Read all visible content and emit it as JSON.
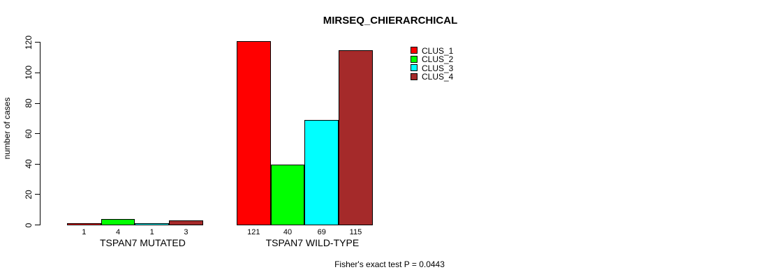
{
  "chart_data": {
    "type": "bar",
    "title": "MIRSEQ_CHIERARCHICAL",
    "ylabel": "number of cases",
    "xlabel": "",
    "categories": [
      "TSPAN7 MUTATED",
      "TSPAN7 WILD-TYPE"
    ],
    "series": [
      {
        "name": "CLUS_1",
        "color": "#FF0000",
        "values": [
          1,
          121
        ]
      },
      {
        "name": "CLUS_2",
        "color": "#00FF00",
        "values": [
          4,
          40
        ]
      },
      {
        "name": "CLUS_3",
        "color": "#00FFFF",
        "values": [
          1,
          69
        ]
      },
      {
        "name": "CLUS_4",
        "color": "#A52A2A",
        "values": [
          3,
          115
        ]
      }
    ],
    "bar_labels": [
      [
        "1",
        "4",
        "1",
        "3"
      ],
      [
        "121",
        "40",
        "69",
        "115"
      ]
    ],
    "yticks": [
      0,
      20,
      40,
      60,
      80,
      100,
      120
    ],
    "ylim": [
      0,
      120
    ],
    "grid": false,
    "legend_position": "top-right",
    "annotation": "Fisher's exact test P = 0.0443"
  },
  "colors": {
    "background": "#FFFFFF",
    "axis": "#000000",
    "text": "#000000"
  }
}
